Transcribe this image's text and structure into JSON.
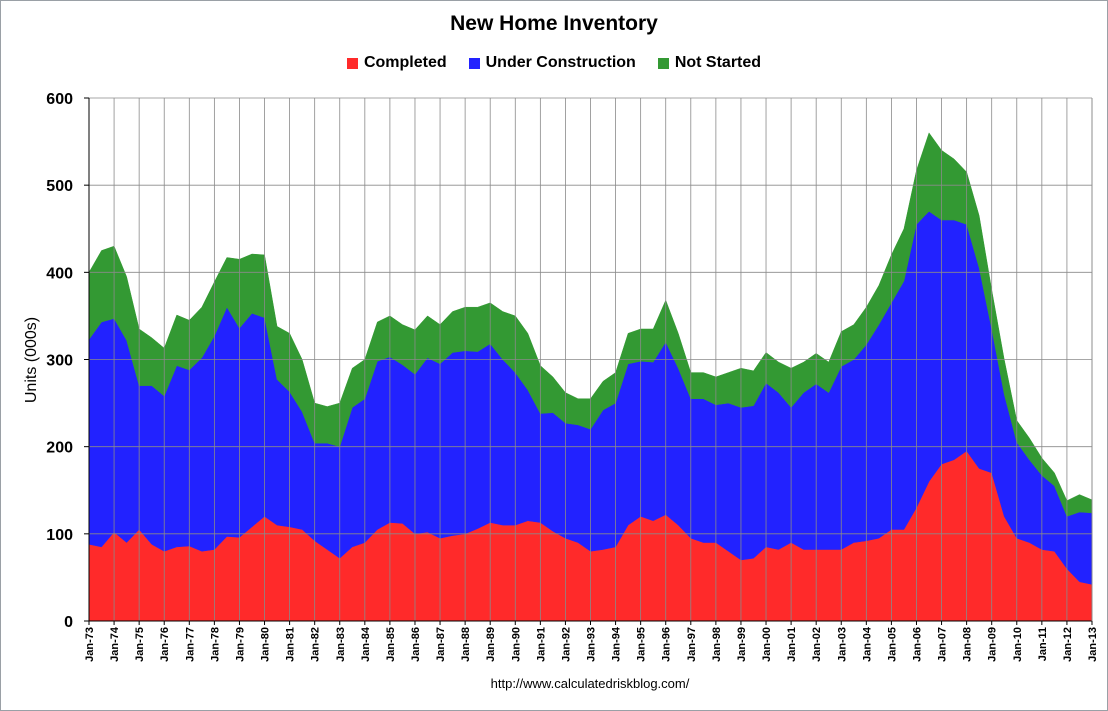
{
  "chart_data": {
    "type": "area",
    "stacked": true,
    "title": "New Home Inventory",
    "ylabel": "Units (000s)",
    "xlabel": "",
    "ylim": [
      0,
      600
    ],
    "yticks": [
      "0",
      "100",
      "200",
      "300",
      "400",
      "500",
      "600"
    ],
    "xlim": [
      1973.0,
      2013.0
    ],
    "categories": [
      "Jan-73",
      "Jan-74",
      "Jan-75",
      "Jan-76",
      "Jan-77",
      "Jan-78",
      "Jan-79",
      "Jan-80",
      "Jan-81",
      "Jan-82",
      "Jan-83",
      "Jan-84",
      "Jan-85",
      "Jan-86",
      "Jan-87",
      "Jan-88",
      "Jan-89",
      "Jan-90",
      "Jan-91",
      "Jan-92",
      "Jan-93",
      "Jan-94",
      "Jan-95",
      "Jan-96",
      "Jan-97",
      "Jan-98",
      "Jan-99",
      "Jan-00",
      "Jan-01",
      "Jan-02",
      "Jan-03",
      "Jan-04",
      "Jan-05",
      "Jan-06",
      "Jan-07",
      "Jan-08",
      "Jan-09",
      "Jan-10",
      "Jan-11",
      "Jan-12",
      "Jan-13"
    ],
    "grid": true,
    "legend_position": "top-center",
    "x": [
      1973.0,
      1973.5,
      1974.0,
      1974.5,
      1975.0,
      1975.5,
      1976.0,
      1976.5,
      1977.0,
      1977.5,
      1978.0,
      1978.5,
      1979.0,
      1979.5,
      1980.0,
      1980.5,
      1981.0,
      1981.5,
      1982.0,
      1982.5,
      1983.0,
      1983.5,
      1984.0,
      1984.5,
      1985.0,
      1985.5,
      1986.0,
      1986.5,
      1987.0,
      1987.5,
      1988.0,
      1988.5,
      1989.0,
      1989.5,
      1990.0,
      1990.5,
      1991.0,
      1991.5,
      1992.0,
      1992.5,
      1993.0,
      1993.5,
      1994.0,
      1994.5,
      1995.0,
      1995.5,
      1996.0,
      1996.5,
      1997.0,
      1997.5,
      1998.0,
      1998.5,
      1999.0,
      1999.5,
      2000.0,
      2000.5,
      2001.0,
      2001.5,
      2002.0,
      2002.5,
      2003.0,
      2003.5,
      2004.0,
      2004.5,
      2005.0,
      2005.5,
      2006.0,
      2006.5,
      2007.0,
      2007.5,
      2008.0,
      2008.5,
      2009.0,
      2009.5,
      2010.0,
      2010.5,
      2011.0,
      2011.5,
      2012.0,
      2012.5,
      2013.0
    ],
    "series": [
      {
        "name": "Completed",
        "color": "#ff2a2a",
        "values": [
          88,
          85,
          102,
          90,
          105,
          88,
          80,
          85,
          86,
          80,
          82,
          97,
          96,
          108,
          120,
          110,
          108,
          105,
          92,
          82,
          72,
          85,
          90,
          105,
          113,
          112,
          100,
          102,
          95,
          98,
          100,
          106,
          113,
          110,
          110,
          115,
          113,
          103,
          95,
          90,
          80,
          82,
          85,
          110,
          120,
          115,
          122,
          110,
          95,
          90,
          90,
          80,
          70,
          72,
          85,
          82,
          90,
          82,
          82,
          82,
          82,
          90,
          92,
          95,
          105,
          105,
          130,
          160,
          180,
          185,
          195,
          175,
          170,
          120,
          95,
          90,
          82,
          80,
          60,
          45,
          42
        ]
      },
      {
        "name": "Under Construction",
        "color": "#2222ff",
        "values": [
          235,
          258,
          245,
          232,
          165,
          182,
          178,
          208,
          202,
          222,
          245,
          263,
          240,
          245,
          228,
          167,
          155,
          135,
          112,
          122,
          128,
          160,
          165,
          193,
          190,
          182,
          183,
          200,
          200,
          210,
          210,
          203,
          205,
          190,
          175,
          150,
          125,
          136,
          132,
          135,
          140,
          160,
          165,
          185,
          178,
          182,
          198,
          180,
          160,
          165,
          158,
          170,
          175,
          175,
          188,
          180,
          155,
          180,
          190,
          180,
          210,
          210,
          225,
          245,
          260,
          285,
          325,
          310,
          280,
          275,
          260,
          230,
          165,
          140,
          110,
          95,
          85,
          75,
          60,
          80,
          82
        ]
      },
      {
        "name": "Not Started",
        "color": "#339933",
        "values": [
          77,
          82,
          83,
          73,
          65,
          55,
          55,
          58,
          57,
          58,
          62,
          57,
          79,
          68,
          72,
          61,
          67,
          60,
          46,
          42,
          50,
          45,
          45,
          45,
          47,
          46,
          51,
          48,
          45,
          47,
          50,
          51,
          47,
          55,
          65,
          65,
          55,
          41,
          35,
          30,
          35,
          33,
          35,
          35,
          37,
          38,
          48,
          40,
          30,
          30,
          32,
          35,
          45,
          40,
          35,
          35,
          45,
          35,
          35,
          35,
          40,
          40,
          43,
          45,
          55,
          60,
          62,
          90,
          80,
          70,
          60,
          60,
          45,
          40,
          25,
          25,
          20,
          15,
          18,
          20,
          15
        ]
      }
    ]
  },
  "source_note": "http://www.calculatedriskblog.com/"
}
